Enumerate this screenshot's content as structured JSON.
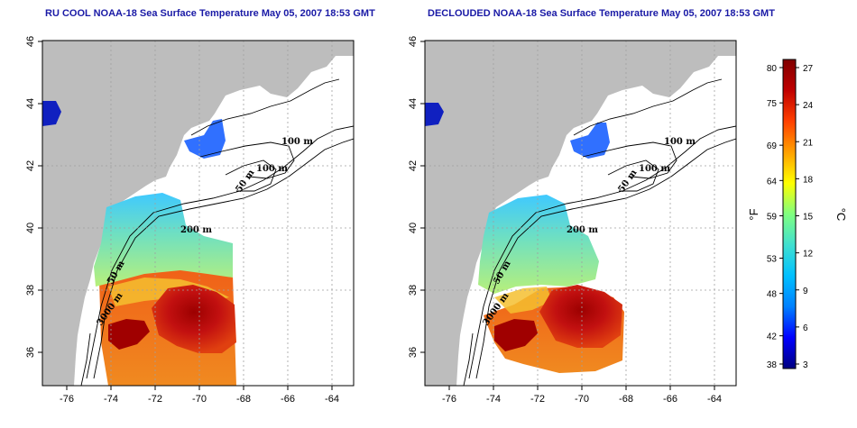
{
  "titles": {
    "left": "RU COOL NOAA-18 Sea Surface Temperature May 05, 2007 18:53 GMT",
    "right": "DECLOUDED NOAA-18 Sea Surface Temperature May 05, 2007 18:53 GMT"
  },
  "axes": {
    "x_ticks": [
      "-76",
      "-74",
      "-72",
      "-70",
      "-68",
      "-66",
      "-64"
    ],
    "y_ticks": [
      "36",
      "38",
      "40",
      "42",
      "44",
      "46"
    ]
  },
  "contour_labels": [
    "100 m",
    "100 m",
    "50 m",
    "200 m",
    "50 m",
    "3000 m"
  ],
  "colorbar": {
    "fahrenheit_ticks": [
      "80",
      "75",
      "69",
      "64",
      "59",
      "53",
      "48",
      "42",
      "38"
    ],
    "celsius_ticks": [
      "27",
      "24",
      "21",
      "18",
      "15",
      "12",
      "9",
      "6",
      "3"
    ],
    "unit_f": "°F",
    "unit_c": "°C",
    "colors": [
      "#000080",
      "#0000ff",
      "#0080ff",
      "#00c0ff",
      "#40e0d0",
      "#80ff80",
      "#ffff00",
      "#ffa000",
      "#ff4000",
      "#c00000",
      "#800000"
    ]
  },
  "colors": {
    "land": "#bdbdbd",
    "title": "#1a1aa6",
    "grid": "#a0a0a0"
  }
}
